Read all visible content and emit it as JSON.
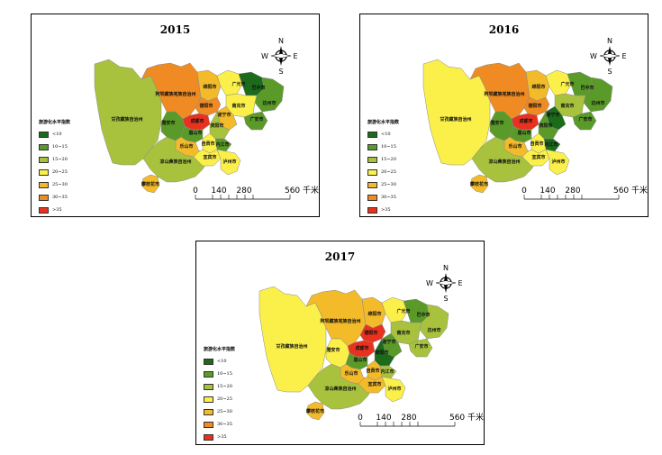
{
  "legend": {
    "title": "旅游化水平指数",
    "classes": [
      {
        "label": "<10",
        "color": "#1b6b1b"
      },
      {
        "label": "10~15",
        "color": "#5a9a28"
      },
      {
        "label": "15~20",
        "color": "#a8c23e"
      },
      {
        "label": "20~25",
        "color": "#fbf04a"
      },
      {
        "label": "25~30",
        "color": "#f3ba2a"
      },
      {
        "label": "30~35",
        "color": "#ef8b22"
      },
      {
        "label": ">35",
        "color": "#e8321f"
      }
    ]
  },
  "compass": {
    "n": "N",
    "s": "S",
    "e": "E",
    "w": "W"
  },
  "scalebar": {
    "ticks": [
      "0",
      "140",
      "280"
    ],
    "end_label": "560 千米"
  },
  "maps": [
    {
      "year": "2015",
      "regions": {
        "ganzi": 2,
        "aba": 5,
        "liangshan": 2,
        "panzhihua": 4,
        "mianyang": 4,
        "guangyuan": 3,
        "bazhong": 0,
        "dazhou": 1,
        "nanchong": 3,
        "guangan": 1,
        "suining": 4,
        "deyang": 5,
        "chengdu": 6,
        "yaan": 1,
        "meishan": 1,
        "leshan": 4,
        "ziyang": 2,
        "neijiang": 1,
        "zigong": 3,
        "yibin": 3,
        "luzhou": 3
      }
    },
    {
      "year": "2016",
      "regions": {
        "ganzi": 3,
        "aba": 5,
        "liangshan": 2,
        "panzhihua": 4,
        "mianyang": 4,
        "guangyuan": 3,
        "bazhong": 1,
        "dazhou": 1,
        "nanchong": 2,
        "guangan": 1,
        "suining": 0,
        "deyang": 5,
        "chengdu": 6,
        "yaan": 1,
        "meishan": 1,
        "leshan": 4,
        "ziyang": 1,
        "neijiang": 0,
        "zigong": 3,
        "yibin": 3,
        "luzhou": 3
      }
    },
    {
      "year": "2017",
      "regions": {
        "ganzi": 3,
        "aba": 4,
        "liangshan": 2,
        "panzhihua": 4,
        "mianyang": 4,
        "guangyuan": 3,
        "bazhong": 1,
        "dazhou": 2,
        "nanchong": 2,
        "guangan": 2,
        "suining": 1,
        "deyang": 6,
        "chengdu": 6,
        "yaan": 3,
        "meishan": 1,
        "leshan": 4,
        "ziyang": 0,
        "neijiang": 2,
        "zigong": 4,
        "yibin": 4,
        "luzhou": 3
      }
    }
  ],
  "labels": {
    "ganzi": "甘孜藏族自治州",
    "aba": "阿坝藏族羌族自治州",
    "liangshan": "凉山彝族自治州",
    "panzhihua": "攀枝花市",
    "mianyang": "绵阳市",
    "guangyuan": "广元市",
    "bazhong": "巴中市",
    "dazhou": "达州市",
    "nanchong": "南充市",
    "guangan": "广安市",
    "suining": "遂宁市",
    "deyang": "德阳市",
    "chengdu": "成都市",
    "yaan": "雅安市",
    "meishan": "眉山市",
    "leshan": "乐山市",
    "ziyang": "资阳市",
    "neijiang": "内江市",
    "zigong": "自贡市",
    "yibin": "宜宾市",
    "luzhou": "泸州市"
  }
}
